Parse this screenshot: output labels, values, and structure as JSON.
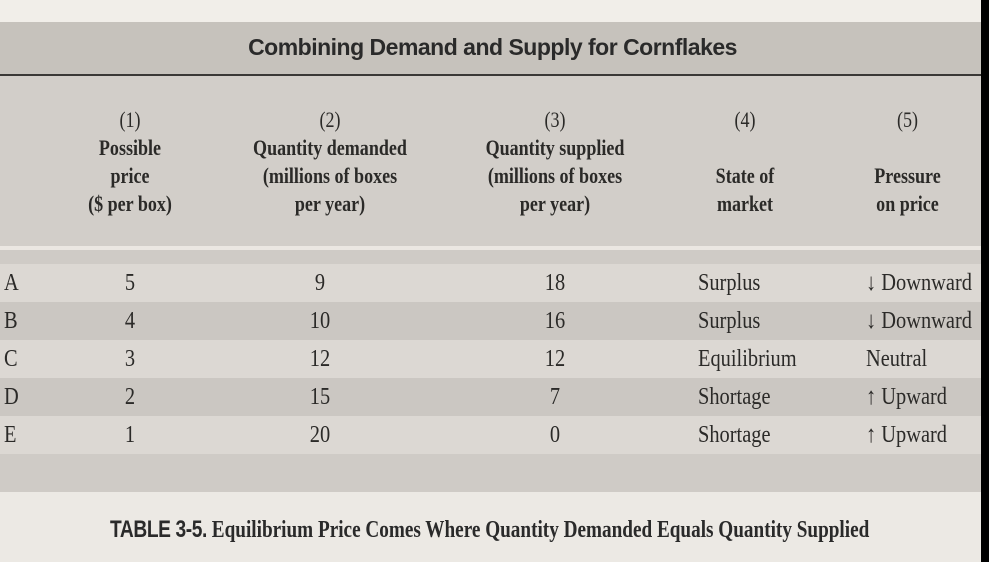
{
  "table": {
    "title": "Combining Demand and Supply for Cornflakes",
    "columns": [
      {
        "number": "(1)",
        "label": "Possible",
        "sub": [
          "price",
          "($ per box)"
        ]
      },
      {
        "number": "(2)",
        "label": "Quantity demanded",
        "sub": [
          "(millions of boxes",
          "per year)"
        ]
      },
      {
        "number": "(3)",
        "label": "Quantity supplied",
        "sub": [
          "(millions of boxes",
          "per year)"
        ]
      },
      {
        "number": "(4)",
        "label": "",
        "sub": [
          "State of",
          "market"
        ]
      },
      {
        "number": "(5)",
        "label": "",
        "sub": [
          "Pressure",
          "on price"
        ]
      }
    ],
    "rows": [
      {
        "letter": "A",
        "price": "5",
        "demanded": "9",
        "supplied": "18",
        "state": "Surplus",
        "pressure": "↓ Downward"
      },
      {
        "letter": "B",
        "price": "4",
        "demanded": "10",
        "supplied": "16",
        "state": "Surplus",
        "pressure": "↓ Downward"
      },
      {
        "letter": "C",
        "price": "3",
        "demanded": "12",
        "supplied": "12",
        "state": "Equilibrium",
        "pressure": "Neutral"
      },
      {
        "letter": "D",
        "price": "2",
        "demanded": "15",
        "supplied": "7",
        "state": "Shortage",
        "pressure": "↑ Upward"
      },
      {
        "letter": "E",
        "price": "1",
        "demanded": "20",
        "supplied": "0",
        "state": "Shortage",
        "pressure": "↑ Upward"
      }
    ]
  },
  "caption": {
    "label": "TABLE 3-5.",
    "text": "Equilibrium Price Comes Where Quantity Demanded Equals Quantity Supplied"
  }
}
